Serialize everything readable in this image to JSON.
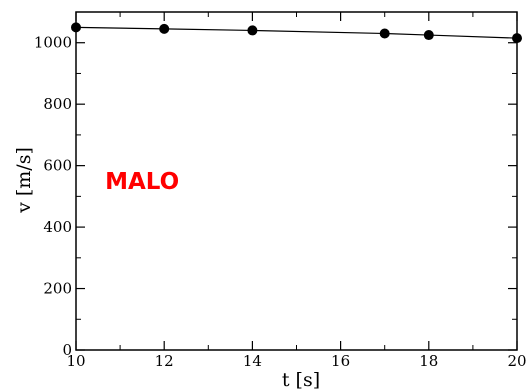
{
  "chart_data": {
    "type": "line",
    "title": "",
    "xlabel": "t [s]",
    "ylabel": "v [m/s]",
    "xlim": [
      10,
      20
    ],
    "ylim": [
      0,
      1100
    ],
    "xticks": [
      10,
      12,
      14,
      16,
      18,
      20
    ],
    "yticks": [
      0,
      200,
      400,
      600,
      800,
      1000
    ],
    "grid": false,
    "legend": "none",
    "series": [
      {
        "x": [
          10,
          12,
          14,
          17,
          18,
          20
        ],
        "y": [
          1050,
          1045,
          1040,
          1030,
          1025,
          1015
        ],
        "color": "#000000",
        "marker": "circle"
      }
    ],
    "annotations": [
      {
        "text": "MALO",
        "x": 11.5,
        "y": 550,
        "color": "#ff0000"
      }
    ]
  }
}
